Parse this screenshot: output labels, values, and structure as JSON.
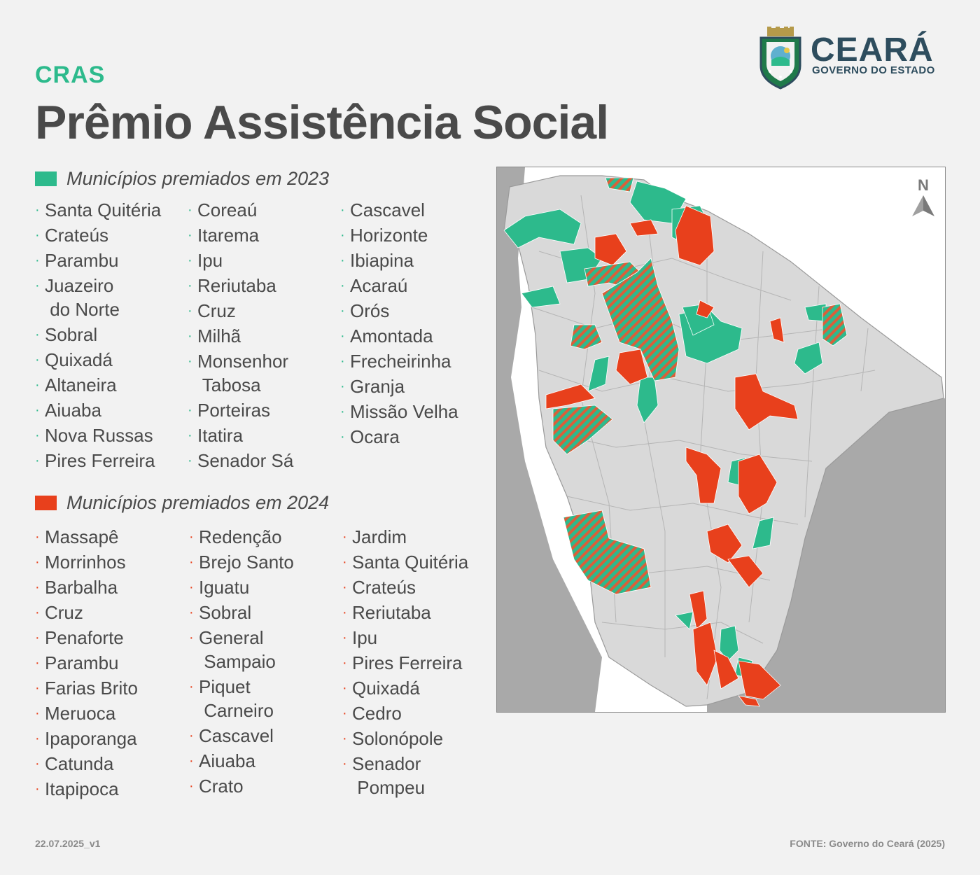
{
  "header": {
    "kicker": "CRAS",
    "title": "Prêmio Assistência Social"
  },
  "logo": {
    "name": "CEARÁ",
    "subtitle": "GOVERNO DO ESTADO"
  },
  "legend_2023": {
    "label": "Municípios premiados em 2023",
    "color": "#2dba8c",
    "columns": [
      [
        "Santa Quitéria",
        "Crateús",
        "Parambu",
        "Juazeiro\n do Norte",
        "Sobral",
        "Quixadá",
        "Altaneira",
        "Aiuaba",
        "Nova Russas",
        "Pires Ferreira"
      ],
      [
        "Coreaú",
        "Itarema",
        "Ipu",
        "Reriutaba",
        "Cruz",
        "Milhã",
        "Monsenhor\n Tabosa",
        "Porteiras",
        "Itatira",
        "Senador Sá"
      ],
      [
        "Cascavel",
        "Horizonte",
        "Ibiapina",
        "Acaraú",
        "Orós",
        "Amontada",
        "Frecheirinha",
        "Granja",
        "Missão Velha",
        "Ocara"
      ]
    ]
  },
  "legend_2024": {
    "label": "Municípios premiados em 2024",
    "color": "#e8401c",
    "columns": [
      [
        "Massapê",
        "Morrinhos",
        "Barbalha",
        "Cruz",
        "Penaforte",
        "Parambu",
        "Farias Brito",
        "Meruoca",
        "Ipaporanga",
        "Catunda",
        "Itapipoca"
      ],
      [
        "Redenção",
        "Brejo Santo",
        "Iguatu",
        "Sobral",
        "General\n Sampaio",
        "Piquet\n Carneiro",
        "Cascavel",
        "Aiuaba",
        "Crato"
      ],
      [
        "Jardim",
        "Santa Quitéria",
        "Crateús",
        "Reriutaba",
        "Ipu",
        "Pires Ferreira",
        "Quixadá",
        "Cedro",
        "Solonópole",
        "Senador\n Pompeu"
      ]
    ]
  },
  "map": {
    "north_label": "N",
    "colors": {
      "state": "#d9d9d9",
      "neighbors": "#a9a9a9",
      "sea": "#ffffff",
      "border": "#9a9a9a",
      "award_2023": "#2dba8c",
      "award_2024": "#e8401c"
    }
  },
  "footer": {
    "version": "22.07.2025_v1",
    "source": "FONTE: Governo do Ceará (2025)"
  }
}
